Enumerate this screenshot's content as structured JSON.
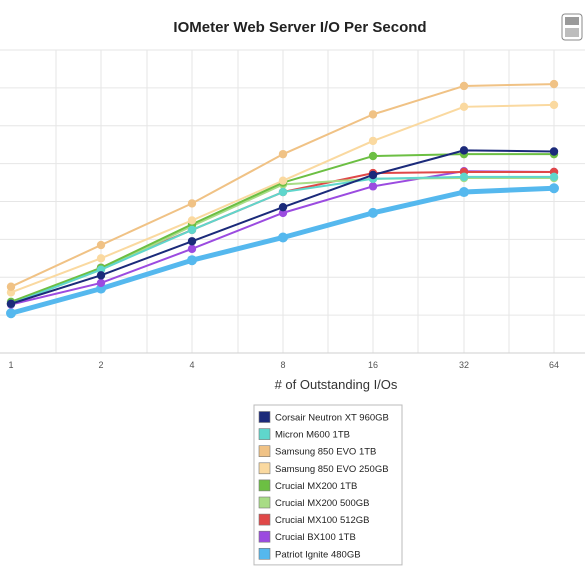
{
  "chart_data": {
    "type": "line",
    "title": "IOMeter Web Server I/O Per Second",
    "xlabel": "# of Outstanding I/Os",
    "ylabel": "",
    "x": [
      1,
      2,
      4,
      8,
      16,
      32,
      64
    ],
    "x_tick_labels": [
      "1",
      "2",
      "4",
      "8",
      "16",
      "32",
      "64"
    ],
    "x_scale": "log2",
    "ylim": [
      0,
      8
    ],
    "grid": true,
    "legend_position": "bottom-center",
    "series": [
      {
        "name": "Corsair Neutron XT 960GB",
        "color": "#1b2a7a",
        "values": [
          1.3,
          2.05,
          2.95,
          3.85,
          4.7,
          5.35,
          5.32
        ]
      },
      {
        "name": "Micron M600 1TB",
        "color": "#5fd6cc",
        "values": [
          1.3,
          2.2,
          3.25,
          4.25,
          4.6,
          4.65,
          4.65
        ]
      },
      {
        "name": "Samsung 850 EVO 1TB",
        "color": "#f0c285",
        "values": [
          1.75,
          2.85,
          3.95,
          5.25,
          6.3,
          7.05,
          7.1
        ]
      },
      {
        "name": "Samsung 850 EVO 250GB",
        "color": "#fad9a0",
        "values": [
          1.6,
          2.5,
          3.5,
          4.55,
          5.6,
          6.5,
          6.55
        ]
      },
      {
        "name": "Crucial MX200 1TB",
        "color": "#6cbf43",
        "values": [
          1.35,
          2.25,
          3.4,
          4.5,
          5.2,
          5.25,
          5.25
        ]
      },
      {
        "name": "Crucial MX200 500GB",
        "color": "#a8dc86",
        "values": [
          1.3,
          2.2,
          3.35,
          4.45,
          4.6,
          4.62,
          4.62
        ]
      },
      {
        "name": "Crucial MX100 512GB",
        "color": "#e04848",
        "values": [
          1.3,
          2.25,
          3.25,
          4.25,
          4.75,
          4.78,
          4.78
        ]
      },
      {
        "name": "Crucial BX100 1TB",
        "color": "#9b4be0",
        "values": [
          1.28,
          1.85,
          2.75,
          3.7,
          4.4,
          4.8,
          4.78
        ]
      },
      {
        "name": "Patriot Ignite 480GB",
        "color": "#55b8ee",
        "values": [
          1.05,
          1.7,
          2.45,
          3.05,
          3.7,
          4.25,
          4.35
        ]
      }
    ]
  }
}
